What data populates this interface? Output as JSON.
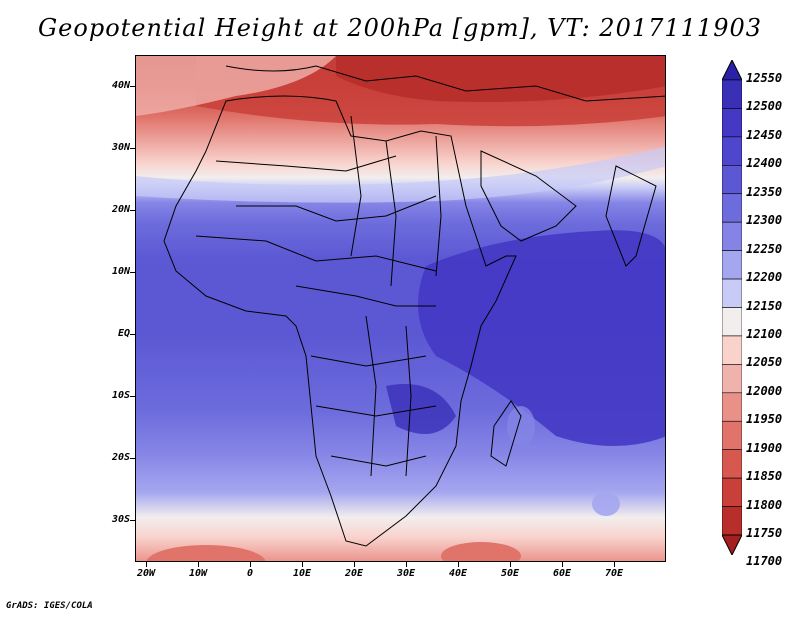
{
  "title": "Geopotential Height at 200hPa [gpm], VT: 2017111903",
  "credit": "GrADS: IGES/COLA",
  "lat_labels": [
    "40N",
    "30N",
    "20N",
    "10N",
    "EQ",
    "10S",
    "20S",
    "30S"
  ],
  "lon_labels": [
    "20W",
    "10W",
    "0",
    "10E",
    "20E",
    "30E",
    "40E",
    "50E",
    "60E",
    "70E"
  ],
  "colorbar": {
    "levels": [
      "12550",
      "12500",
      "12450",
      "12400",
      "12350",
      "12300",
      "12250",
      "12200",
      "12150",
      "12100",
      "12050",
      "12000",
      "11950",
      "11900",
      "11850",
      "11800",
      "11750",
      "11700"
    ],
    "colors": [
      "#2a21a8",
      "#3a30b8",
      "#4438c4",
      "#4e46cc",
      "#5c58d4",
      "#6d6cdc",
      "#8584e6",
      "#a4a6ef",
      "#c8cbf6",
      "#f2eeee",
      "#f9d2cc",
      "#f0b2ac",
      "#e99088",
      "#e0736a",
      "#d6584e",
      "#c9403a",
      "#b72e2a",
      "#a71e1e"
    ]
  },
  "map": {
    "region": "Africa",
    "variable": "Geopotential Height at 200hPa",
    "lon_range": [
      -22,
      80
    ],
    "lat_range": [
      -37,
      45
    ]
  }
}
